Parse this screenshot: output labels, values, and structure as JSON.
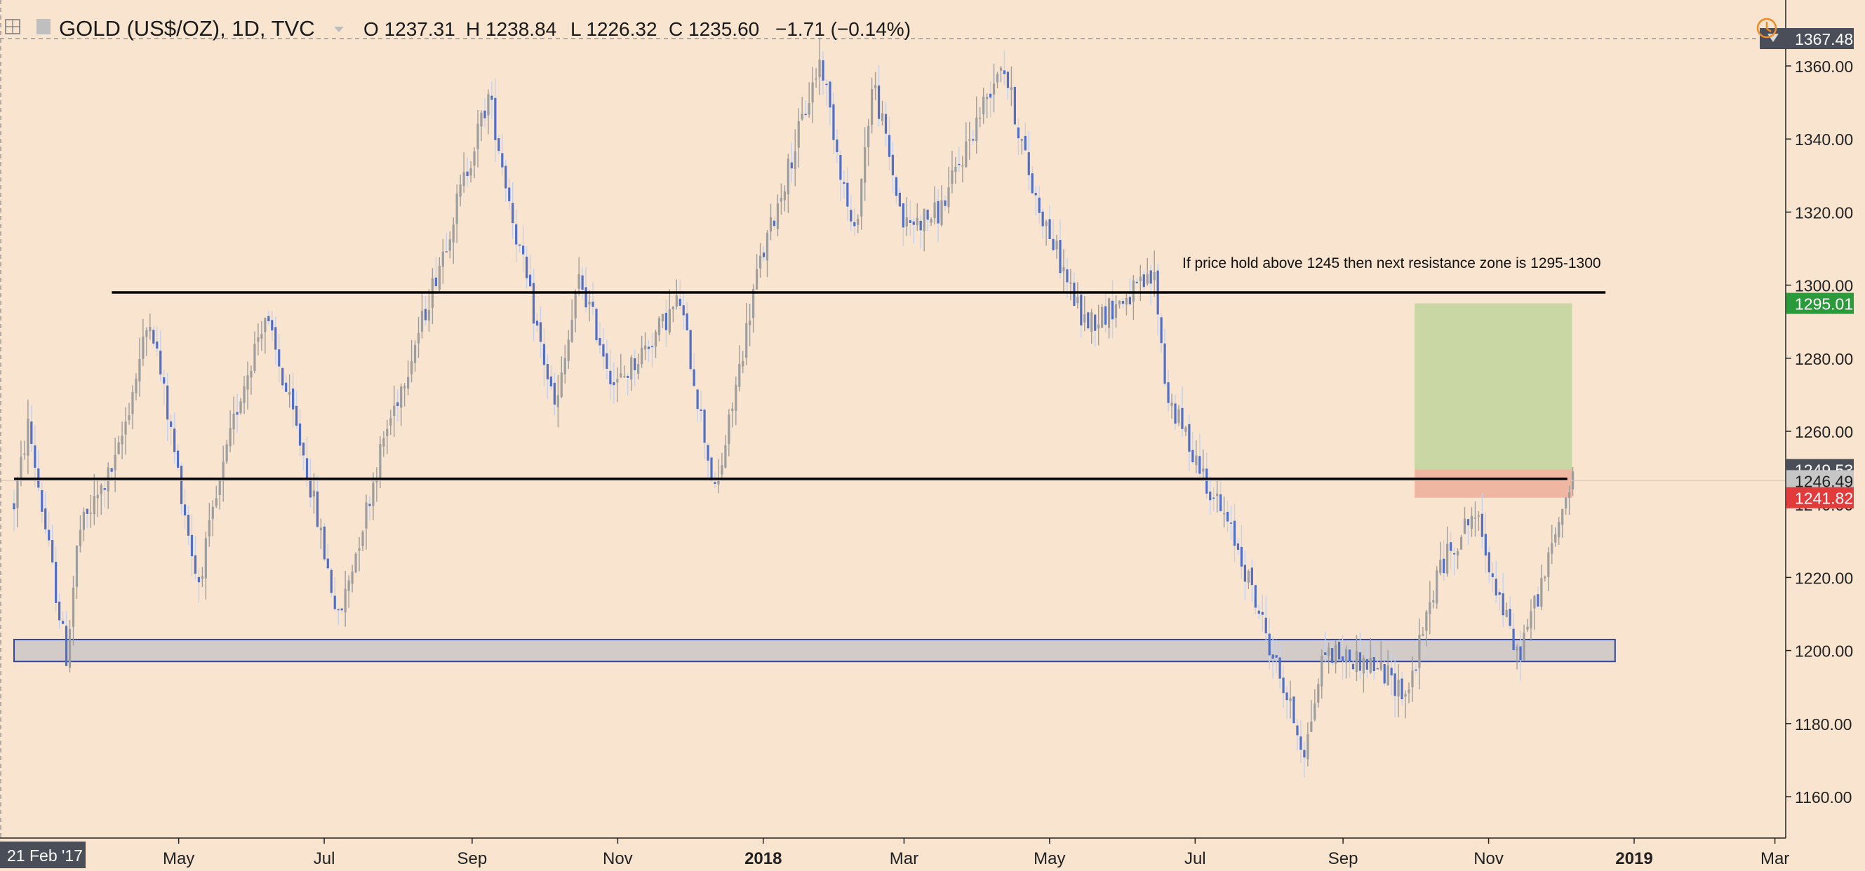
{
  "header": {
    "symbol": "GOLD (US$/OZ), 1D, TVC",
    "open": "O 1237.31",
    "high": "H 1238.84",
    "low": "L 1226.32",
    "close": "C 1235.60",
    "change": "−1.71 (−0.14%)"
  },
  "annotation": "If price hold above 1245 then next resistance zone is 1295-1300",
  "colors": {
    "background": "#f8e4cf",
    "bull": "#9e9e9e",
    "bear": "#4f6fc8",
    "bear_wick": "#c4d2ee",
    "target_zone": "#c9d7a4",
    "stop_zone": "#efb7a1",
    "support_zone": "#d3cbc7",
    "support_border": "#2e46a8",
    "line": "#000000",
    "green_tag": "#2b9a3a",
    "red_tag": "#e23b3b",
    "dark_tag": "#4a4e58",
    "gray_tag": "#c6c6c6"
  },
  "chart_data": {
    "type": "candlestick",
    "title": "GOLD (US$/OZ), 1D, TVC",
    "ylim": [
      1152,
      1372
    ],
    "x_ticks": [
      "May",
      "Jul",
      "Sep",
      "Nov",
      "2018",
      "Mar",
      "May",
      "Jul",
      "Sep",
      "Nov",
      "2019",
      "Mar"
    ],
    "x_start_label": "21 Feb '17",
    "y_ticks": [
      1160.0,
      1180.0,
      1200.0,
      1220.0,
      1240.0,
      1260.0,
      1280.0,
      1300.0,
      1320.0,
      1340.0,
      1360.0
    ],
    "price_tags": [
      {
        "value": 1367.48,
        "label": "1367.48",
        "style": "dark"
      },
      {
        "value": 1295.01,
        "label": "1295.01",
        "style": "green"
      },
      {
        "value": 1249.53,
        "label": "1249.53",
        "style": "dark"
      },
      {
        "value": 1246.49,
        "label": "1246.49",
        "style": "gray"
      },
      {
        "value": 1241.82,
        "label": "1241.82",
        "style": "red"
      }
    ],
    "horizontal_lines": [
      {
        "price": 1298,
        "start": "2017-04-03",
        "end": "2018-12-20"
      },
      {
        "price": 1247,
        "start": "2017-02-21",
        "end": "2018-12-04"
      }
    ],
    "support_zone": {
      "low": 1197,
      "high": 1203,
      "start": "2017-02-21",
      "end": "2018-12-24"
    },
    "position": {
      "start": "2018-10-01",
      "end": "2018-12-06",
      "entry": 1249.53,
      "target": 1295.01,
      "stop": 1241.82
    },
    "path": [
      [
        "2017-02-21",
        1240
      ],
      [
        "2017-02-27",
        1262
      ],
      [
        "2017-03-15",
        1198
      ],
      [
        "2017-03-20",
        1232
      ],
      [
        "2017-04-05",
        1252
      ],
      [
        "2017-04-19",
        1292
      ],
      [
        "2017-05-09",
        1218
      ],
      [
        "2017-05-26",
        1268
      ],
      [
        "2017-06-06",
        1292
      ],
      [
        "2017-06-23",
        1252
      ],
      [
        "2017-07-07",
        1208
      ],
      [
        "2017-07-26",
        1258
      ],
      [
        "2017-08-11",
        1290
      ],
      [
        "2017-09-08",
        1352
      ],
      [
        "2017-09-20",
        1312
      ],
      [
        "2017-10-06",
        1265
      ],
      [
        "2017-10-16",
        1302
      ],
      [
        "2017-10-31",
        1272
      ],
      [
        "2017-11-15",
        1285
      ],
      [
        "2017-11-27",
        1296
      ],
      [
        "2017-12-12",
        1242
      ],
      [
        "2017-12-29",
        1302
      ],
      [
        "2018-01-25",
        1362
      ],
      [
        "2018-02-08",
        1312
      ],
      [
        "2018-02-16",
        1356
      ],
      [
        "2018-03-01",
        1316
      ],
      [
        "2018-03-16",
        1320
      ],
      [
        "2018-04-11",
        1362
      ],
      [
        "2018-04-24",
        1326
      ],
      [
        "2018-05-15",
        1290
      ],
      [
        "2018-05-21",
        1291
      ],
      [
        "2018-06-14",
        1302
      ],
      [
        "2018-06-19",
        1270
      ],
      [
        "2018-07-19",
        1228
      ],
      [
        "2018-08-16",
        1172
      ],
      [
        "2018-08-24",
        1200
      ],
      [
        "2018-09-14",
        1196
      ],
      [
        "2018-09-28",
        1188
      ],
      [
        "2018-10-11",
        1222
      ],
      [
        "2018-10-26",
        1238
      ],
      [
        "2018-11-13",
        1198
      ],
      [
        "2018-11-26",
        1224
      ],
      [
        "2018-12-04",
        1244
      ],
      [
        "2018-12-07",
        1246.49
      ]
    ]
  }
}
